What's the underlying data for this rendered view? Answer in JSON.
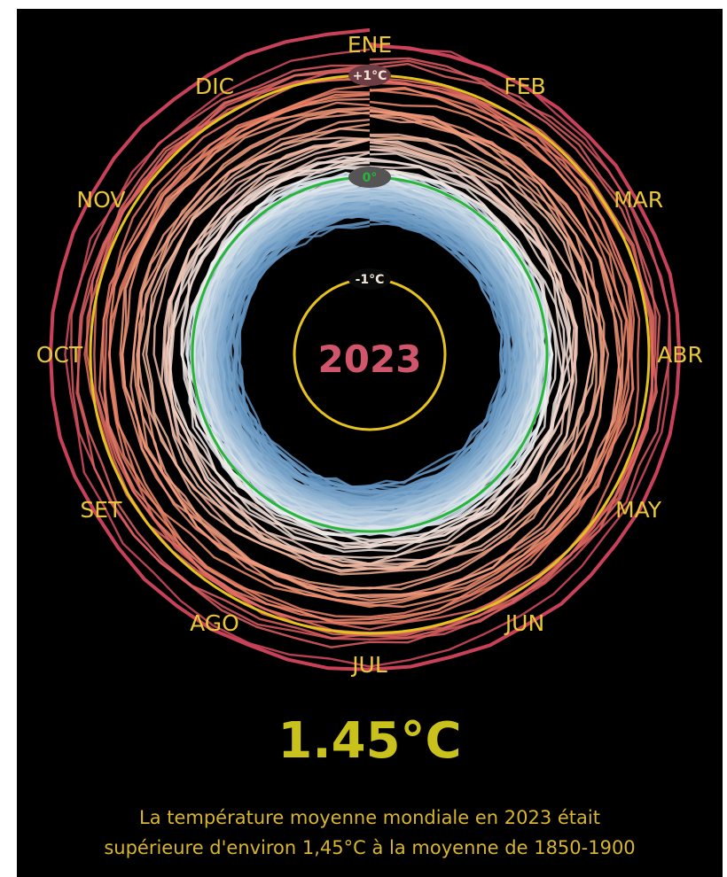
{
  "chart_data": {
    "type": "line",
    "subtype": "polar-climate-spiral",
    "months": [
      "ENE",
      "FEB",
      "MAR",
      "ABR",
      "MAY",
      "JUN",
      "JUL",
      "AGO",
      "SET",
      "OCT",
      "NOV",
      "DIC"
    ],
    "reference_rings": [
      {
        "label": "+1°C",
        "value": 1,
        "color": "#e5c21f"
      },
      {
        "label": "0°",
        "value": 0,
        "color": "#27b53a"
      },
      {
        "label": "-1°C",
        "value": -1,
        "color": "#e5c21f"
      }
    ],
    "year_label": "2023",
    "years_range": [
      1850,
      2023
    ],
    "r_range": [
      -1.0,
      1.5
    ],
    "highlight_value": "1.45°C",
    "colors": {
      "cold": "#2e6aa6",
      "neutral": "#f2f2f2",
      "warm": "#f08a6a",
      "hot": "#d3455e",
      "ring_gold": "#e5c21f",
      "ring_green": "#27b53a",
      "year": "#d2566b",
      "value": "#c9c21c",
      "caption": "#d8b530"
    }
  },
  "caption": {
    "line1": "La température moyenne mondiale en 2023 était",
    "line2": "supérieure d'environ 1,45°C à la moyenne de 1850-1900"
  }
}
